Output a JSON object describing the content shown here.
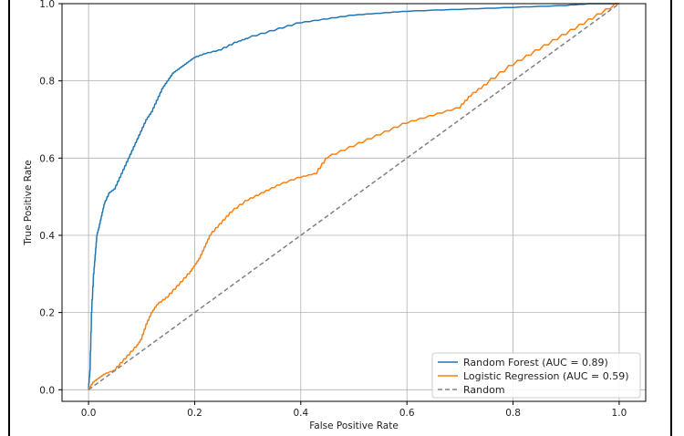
{
  "chart_data": {
    "type": "line",
    "title": "",
    "xlabel": "False Positive Rate",
    "ylabel": "True Positive Rate",
    "xlim": [
      -0.05,
      1.05
    ],
    "ylim": [
      -0.03,
      1.0
    ],
    "xticks": [
      "0.0",
      "0.2",
      "0.4",
      "0.6",
      "0.8",
      "1.0"
    ],
    "yticks": [
      "0.0",
      "0.2",
      "0.4",
      "0.6",
      "0.8",
      "1.0"
    ],
    "grid": true,
    "legend_position": "lower-right",
    "series": [
      {
        "name": "Random Forest (AUC = 0.89)",
        "color": "#1f77b4",
        "style": "solid",
        "x": [
          0.0,
          0.003,
          0.006,
          0.01,
          0.013,
          0.016,
          0.02,
          0.025,
          0.03,
          0.04,
          0.05,
          0.06,
          0.07,
          0.08,
          0.09,
          0.1,
          0.11,
          0.12,
          0.13,
          0.14,
          0.15,
          0.16,
          0.17,
          0.18,
          0.19,
          0.2,
          0.22,
          0.25,
          0.28,
          0.3,
          0.35,
          0.4,
          0.45,
          0.5,
          0.55,
          0.6,
          0.7,
          0.8,
          0.9,
          0.95,
          1.0
        ],
        "y": [
          0.0,
          0.05,
          0.2,
          0.3,
          0.35,
          0.4,
          0.42,
          0.45,
          0.48,
          0.51,
          0.52,
          0.55,
          0.58,
          0.61,
          0.64,
          0.67,
          0.7,
          0.72,
          0.75,
          0.78,
          0.8,
          0.82,
          0.83,
          0.84,
          0.85,
          0.86,
          0.87,
          0.88,
          0.9,
          0.91,
          0.93,
          0.95,
          0.96,
          0.97,
          0.975,
          0.98,
          0.985,
          0.99,
          0.995,
          1.0,
          1.0
        ]
      },
      {
        "name": "Logistic Regression (AUC = 0.59)",
        "color": "#ff7f0e",
        "style": "solid",
        "x": [
          0.0,
          0.01,
          0.02,
          0.03,
          0.05,
          0.07,
          0.09,
          0.1,
          0.11,
          0.12,
          0.13,
          0.15,
          0.17,
          0.19,
          0.2,
          0.21,
          0.22,
          0.23,
          0.25,
          0.27,
          0.3,
          0.33,
          0.36,
          0.4,
          0.43,
          0.45,
          0.5,
          0.55,
          0.6,
          0.65,
          0.7,
          0.72,
          0.75,
          0.8,
          0.85,
          0.9,
          0.95,
          1.0
        ],
        "y": [
          0.0,
          0.02,
          0.03,
          0.04,
          0.05,
          0.08,
          0.11,
          0.13,
          0.17,
          0.2,
          0.22,
          0.24,
          0.27,
          0.3,
          0.32,
          0.34,
          0.37,
          0.4,
          0.43,
          0.46,
          0.49,
          0.51,
          0.53,
          0.55,
          0.56,
          0.6,
          0.63,
          0.66,
          0.69,
          0.71,
          0.73,
          0.76,
          0.79,
          0.84,
          0.88,
          0.92,
          0.96,
          1.0
        ]
      },
      {
        "name": "Random",
        "color": "#808080",
        "style": "dashed",
        "x": [
          0.0,
          1.0
        ],
        "y": [
          0.0,
          1.0
        ]
      }
    ]
  }
}
